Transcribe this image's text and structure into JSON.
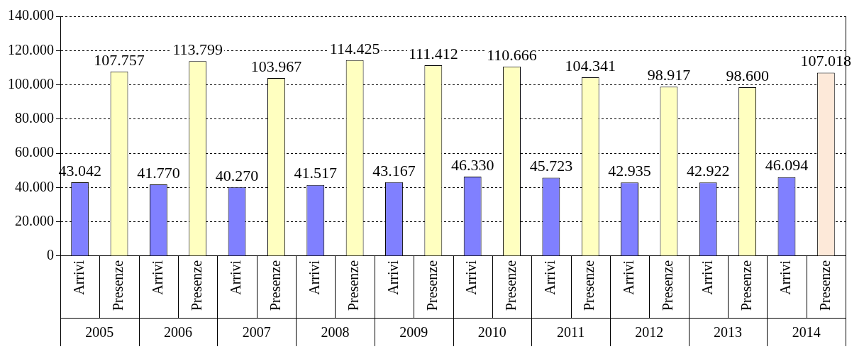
{
  "chart_data": {
    "type": "bar",
    "categories": [
      "Arrivi",
      "Presenze",
      "Arrivi",
      "Presenze",
      "Arrivi",
      "Presenze",
      "Arrivi",
      "Presenze",
      "Arrivi",
      "Presenze",
      "Arrivi",
      "Presenze",
      "Arrivi",
      "Presenze",
      "Arrivi",
      "Presenze",
      "Arrivi",
      "Presenze",
      "Arrivi",
      "Presenze"
    ],
    "values": [
      43042,
      107757,
      41770,
      113799,
      40270,
      103967,
      41517,
      114425,
      43167,
      111412,
      46330,
      110666,
      45723,
      104341,
      42935,
      98917,
      42922,
      98600,
      46094,
      107018
    ],
    "value_labels": [
      "43.042",
      "107.757",
      "41.770",
      "113.799",
      "40.270",
      "103.967",
      "41.517",
      "114.425",
      "43.167",
      "111.412",
      "46.330",
      "110.666",
      "45.723",
      "104.341",
      "42.935",
      "98.917",
      "42.922",
      "98.600",
      "46.094",
      "107.018"
    ],
    "colors": [
      "#8080ff",
      "#ffffc0",
      "#8080ff",
      "#ffffc0",
      "#8080ff",
      "#ffffc0",
      "#8080ff",
      "#ffffc0",
      "#8080ff",
      "#ffffc0",
      "#8080ff",
      "#ffffc0",
      "#8080ff",
      "#ffffc0",
      "#8080ff",
      "#ffffc0",
      "#8080ff",
      "#ffffc0",
      "#8080ff",
      "#fde9d9"
    ],
    "annotations": [
      "2005",
      "2006",
      "2007",
      "2008",
      "2009",
      "2010",
      "2011",
      "2012",
      "2013",
      "2014"
    ],
    "ylim": [
      0,
      140000
    ],
    "yticks": [
      {
        "value": 0,
        "label": "0"
      },
      {
        "value": 20000,
        "label": "20.000"
      },
      {
        "value": 40000,
        "label": "40.000"
      },
      {
        "value": 60000,
        "label": "60.000"
      },
      {
        "value": 80000,
        "label": "80.000"
      },
      {
        "value": 100000,
        "label": "100.000"
      },
      {
        "value": 120000,
        "label": "120.000"
      },
      {
        "value": 140000,
        "label": "140.000"
      }
    ],
    "grid": "y",
    "legend": false
  }
}
